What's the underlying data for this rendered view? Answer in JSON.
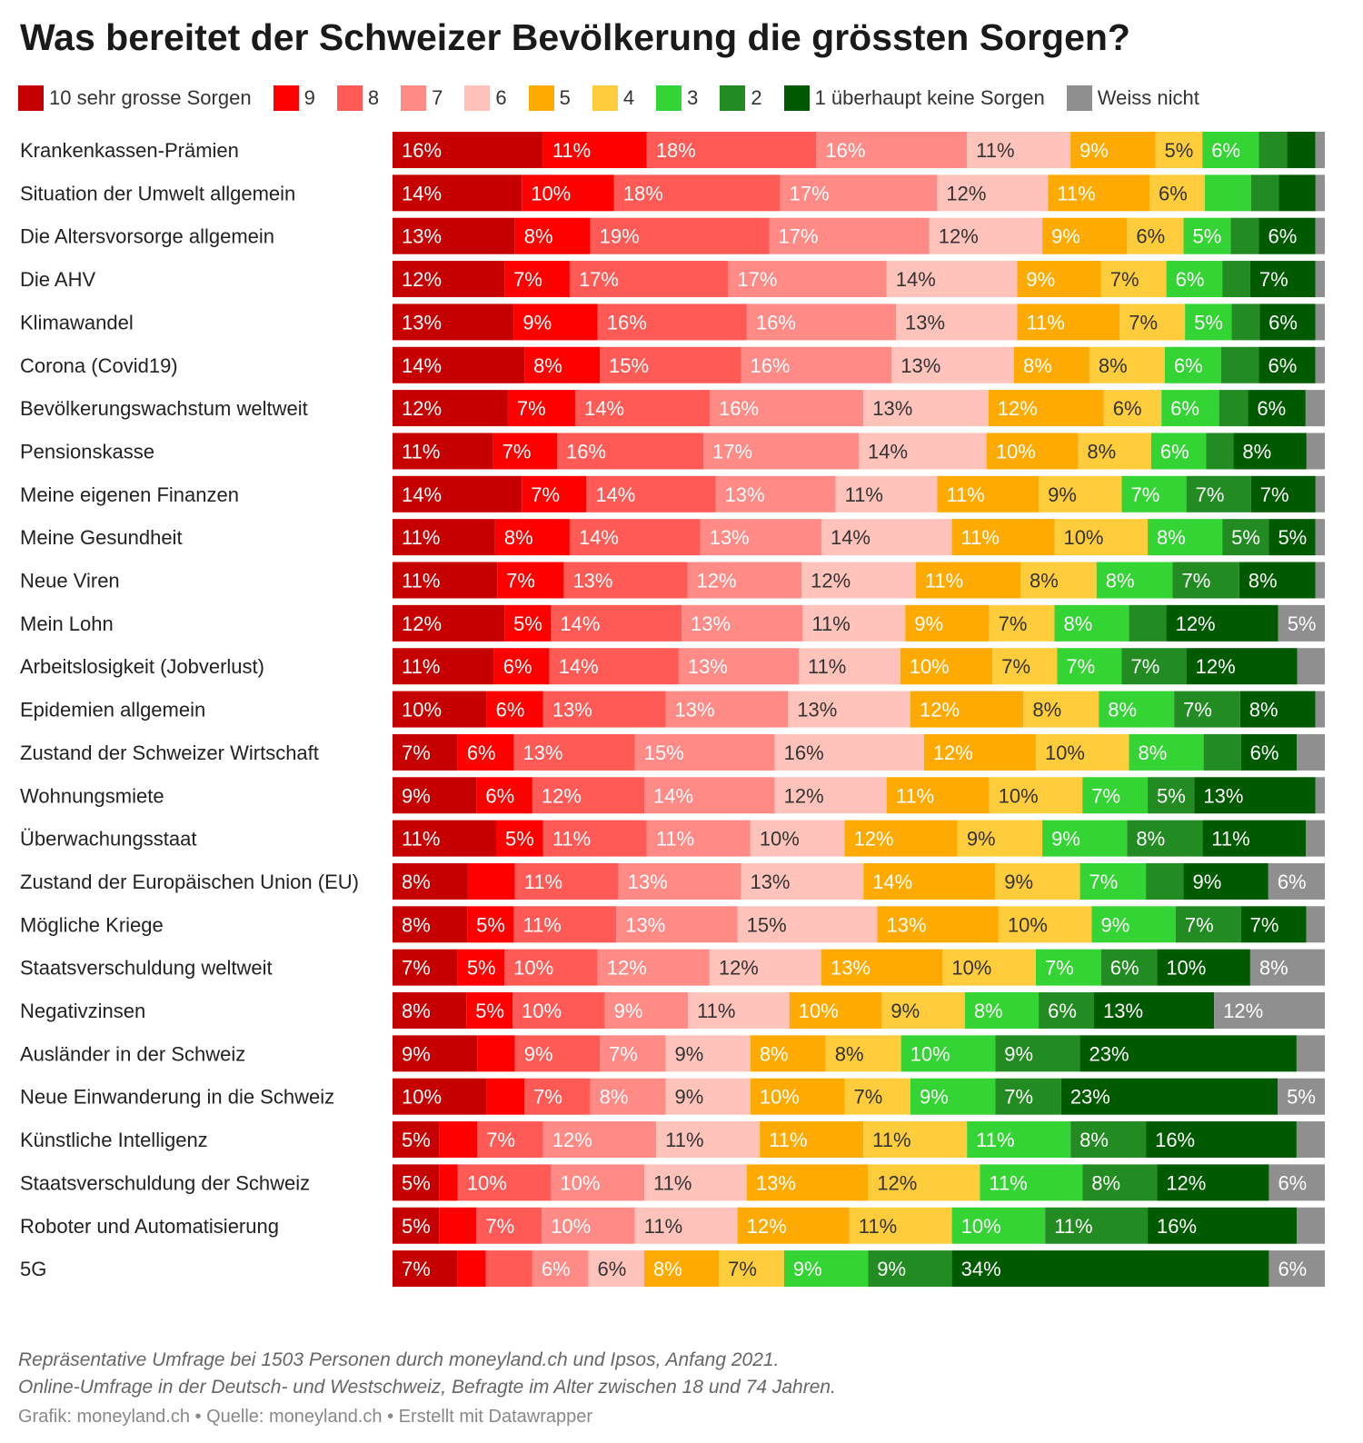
{
  "title": "Was bereitet der Schweizer Bevölkerung die grössten Sorgen?",
  "notes": [
    "Repräsentative Umfrage bei 1503 Personen durch moneyland.ch und Ipsos, Anfang 2021.",
    "Online-Umfrage in der Deutsch- und Westschweiz, Befragte im Alter zwischen 18 und 74 Jahren."
  ],
  "credits": "Grafik: moneyland.ch • Quelle: moneyland.ch • Erstellt mit Datawrapper",
  "chart_data": {
    "type": "bar",
    "orientation": "horizontal",
    "stacked": true,
    "unit": "%",
    "xlim": [
      0,
      100
    ],
    "legend_position": "top",
    "series": [
      {
        "name": "10 sehr grosse Sorgen",
        "color": "#c60000",
        "values": [
          16,
          14,
          13,
          12,
          13,
          14,
          12,
          11,
          14,
          11,
          11,
          12,
          11,
          10,
          7,
          9,
          11,
          8,
          8,
          7,
          8,
          9,
          10,
          5,
          5,
          5,
          7
        ]
      },
      {
        "name": "9",
        "color": "#ff0000",
        "values": [
          11,
          10,
          8,
          7,
          9,
          8,
          7,
          7,
          7,
          8,
          7,
          5,
          6,
          6,
          6,
          6,
          5,
          5,
          5,
          5,
          5,
          4,
          4,
          4,
          2,
          4,
          3
        ]
      },
      {
        "name": "8",
        "color": "#ff5a55",
        "values": [
          18,
          18,
          19,
          17,
          16,
          15,
          14,
          16,
          14,
          14,
          13,
          14,
          14,
          13,
          13,
          12,
          11,
          11,
          11,
          10,
          10,
          9,
          7,
          7,
          10,
          7,
          5
        ]
      },
      {
        "name": "7",
        "color": "#ff8a86",
        "values": [
          16,
          17,
          17,
          17,
          16,
          16,
          16,
          17,
          13,
          13,
          12,
          13,
          13,
          13,
          15,
          14,
          11,
          13,
          13,
          12,
          9,
          7,
          8,
          12,
          10,
          10,
          6
        ]
      },
      {
        "name": "6",
        "color": "#ffc3bb",
        "values": [
          11,
          12,
          12,
          14,
          13,
          13,
          13,
          14,
          11,
          14,
          12,
          11,
          11,
          13,
          16,
          12,
          10,
          13,
          15,
          12,
          11,
          9,
          9,
          11,
          11,
          11,
          6
        ]
      },
      {
        "name": "5",
        "color": "#ffaa00",
        "values": [
          9,
          11,
          9,
          9,
          11,
          8,
          12,
          10,
          11,
          11,
          11,
          9,
          10,
          12,
          12,
          11,
          12,
          14,
          13,
          13,
          10,
          8,
          10,
          11,
          13,
          12,
          8
        ]
      },
      {
        "name": "4",
        "color": "#ffcc3c",
        "values": [
          5,
          6,
          6,
          7,
          7,
          8,
          6,
          8,
          9,
          10,
          8,
          7,
          7,
          8,
          10,
          10,
          9,
          9,
          10,
          10,
          9,
          8,
          7,
          11,
          12,
          11,
          7
        ]
      },
      {
        "name": "3",
        "color": "#33d433",
        "values": [
          6,
          5,
          5,
          6,
          5,
          6,
          6,
          6,
          7,
          8,
          8,
          8,
          7,
          8,
          8,
          7,
          9,
          7,
          9,
          7,
          8,
          10,
          9,
          11,
          11,
          10,
          9
        ]
      },
      {
        "name": "2",
        "color": "#228b22",
        "values": [
          3,
          3,
          3,
          3,
          3,
          4,
          3,
          3,
          7,
          5,
          7,
          4,
          7,
          7,
          4,
          5,
          8,
          4,
          7,
          6,
          6,
          9,
          7,
          8,
          8,
          11,
          9
        ]
      },
      {
        "name": "1 überhaupt keine Sorgen",
        "color": "#005a00",
        "values": [
          3,
          4,
          6,
          7,
          6,
          6,
          6,
          8,
          7,
          5,
          8,
          12,
          12,
          8,
          6,
          13,
          11,
          9,
          7,
          10,
          13,
          23,
          23,
          16,
          12,
          16,
          34
        ]
      },
      {
        "name": "Weiss nicht",
        "color": "#8f8f8f",
        "values": [
          1,
          1,
          1,
          1,
          1,
          1,
          2,
          2,
          1,
          1,
          1,
          5,
          3,
          1,
          3,
          1,
          2,
          6,
          2,
          8,
          12,
          3,
          5,
          3,
          6,
          3,
          6
        ]
      }
    ],
    "categories": [
      "Krankenkassen-Prämien",
      "Situation der Umwelt allgemein",
      "Die Altersvorsorge allgemein",
      "Die AHV",
      "Klimawandel",
      "Corona (Covid19)",
      "Bevölkerungswachstum weltweit",
      "Pensionskasse",
      "Meine eigenen Finanzen",
      "Meine Gesundheit",
      "Neue Viren",
      "Mein Lohn",
      "Arbeitslosigkeit (Jobverlust)",
      "Epidemien allgemein",
      "Zustand der Schweizer Wirtschaft",
      "Wohnungsmiete",
      "Überwachungsstaat",
      "Zustand der Europäischen Union (EU)",
      "Mögliche Kriege",
      "Staatsverschuldung weltweit",
      "Negativzinsen",
      "Ausländer in der Schweiz",
      "Neue Einwanderung in die Schweiz",
      "Künstliche Intelligenz",
      "Staatsverschuldung der Schweiz",
      "Roboter und Automatisierung",
      "5G"
    ],
    "labels": [
      [
        "16%",
        "11%",
        "18%",
        "16%",
        "11%",
        "9%",
        "5%",
        "6%",
        "",
        "",
        ""
      ],
      [
        "14%",
        "10%",
        "18%",
        "17%",
        "12%",
        "11%",
        "6%",
        "",
        "",
        "",
        ""
      ],
      [
        "13%",
        "8%",
        "19%",
        "17%",
        "12%",
        "9%",
        "6%",
        "5%",
        "",
        "6%",
        ""
      ],
      [
        "12%",
        "7%",
        "17%",
        "17%",
        "14%",
        "9%",
        "7%",
        "6%",
        "",
        "7%",
        ""
      ],
      [
        "13%",
        "9%",
        "16%",
        "16%",
        "13%",
        "11%",
        "7%",
        "5%",
        "",
        "6%",
        ""
      ],
      [
        "14%",
        "8%",
        "15%",
        "16%",
        "13%",
        "8%",
        "8%",
        "6%",
        "",
        "6%",
        ""
      ],
      [
        "12%",
        "7%",
        "14%",
        "16%",
        "13%",
        "12%",
        "6%",
        "6%",
        "",
        "6%",
        ""
      ],
      [
        "11%",
        "7%",
        "16%",
        "17%",
        "14%",
        "10%",
        "8%",
        "6%",
        "",
        "8%",
        ""
      ],
      [
        "14%",
        "7%",
        "14%",
        "13%",
        "11%",
        "11%",
        "9%",
        "7%",
        "7%",
        "7%",
        ""
      ],
      [
        "11%",
        "8%",
        "14%",
        "13%",
        "14%",
        "11%",
        "10%",
        "8%",
        "5%",
        "5%",
        ""
      ],
      [
        "11%",
        "7%",
        "13%",
        "12%",
        "12%",
        "11%",
        "8%",
        "8%",
        "7%",
        "8%",
        ""
      ],
      [
        "12%",
        "5%",
        "14%",
        "13%",
        "11%",
        "9%",
        "7%",
        "8%",
        "",
        "12%",
        "5%"
      ],
      [
        "11%",
        "6%",
        "14%",
        "13%",
        "11%",
        "10%",
        "7%",
        "7%",
        "7%",
        "12%",
        ""
      ],
      [
        "10%",
        "6%",
        "13%",
        "13%",
        "13%",
        "12%",
        "8%",
        "8%",
        "7%",
        "8%",
        ""
      ],
      [
        "7%",
        "6%",
        "13%",
        "15%",
        "16%",
        "12%",
        "10%",
        "8%",
        "",
        "6%",
        ""
      ],
      [
        "9%",
        "6%",
        "12%",
        "14%",
        "12%",
        "11%",
        "10%",
        "7%",
        "5%",
        "13%",
        ""
      ],
      [
        "11%",
        "5%",
        "11%",
        "11%",
        "10%",
        "12%",
        "9%",
        "9%",
        "8%",
        "11%",
        ""
      ],
      [
        "8%",
        "",
        "11%",
        "13%",
        "13%",
        "14%",
        "9%",
        "7%",
        "",
        "9%",
        "6%"
      ],
      [
        "8%",
        "5%",
        "11%",
        "13%",
        "15%",
        "13%",
        "10%",
        "9%",
        "7%",
        "7%",
        ""
      ],
      [
        "7%",
        "5%",
        "10%",
        "12%",
        "12%",
        "13%",
        "10%",
        "7%",
        "6%",
        "10%",
        "8%"
      ],
      [
        "8%",
        "5%",
        "10%",
        "9%",
        "11%",
        "10%",
        "9%",
        "8%",
        "6%",
        "13%",
        "12%"
      ],
      [
        "9%",
        "",
        "9%",
        "7%",
        "9%",
        "8%",
        "8%",
        "10%",
        "9%",
        "23%",
        ""
      ],
      [
        "10%",
        "",
        "7%",
        "8%",
        "9%",
        "10%",
        "7%",
        "9%",
        "7%",
        "23%",
        "5%"
      ],
      [
        "5%",
        "",
        "7%",
        "12%",
        "11%",
        "11%",
        "11%",
        "11%",
        "8%",
        "16%",
        ""
      ],
      [
        "5%",
        "",
        "10%",
        "10%",
        "11%",
        "13%",
        "12%",
        "11%",
        "8%",
        "12%",
        "6%"
      ],
      [
        "5%",
        "",
        "7%",
        "10%",
        "11%",
        "12%",
        "11%",
        "10%",
        "11%",
        "16%",
        ""
      ],
      [
        "7%",
        "",
        "",
        "6%",
        "6%",
        "8%",
        "7%",
        "9%",
        "9%",
        "34%",
        "6%"
      ]
    ]
  }
}
